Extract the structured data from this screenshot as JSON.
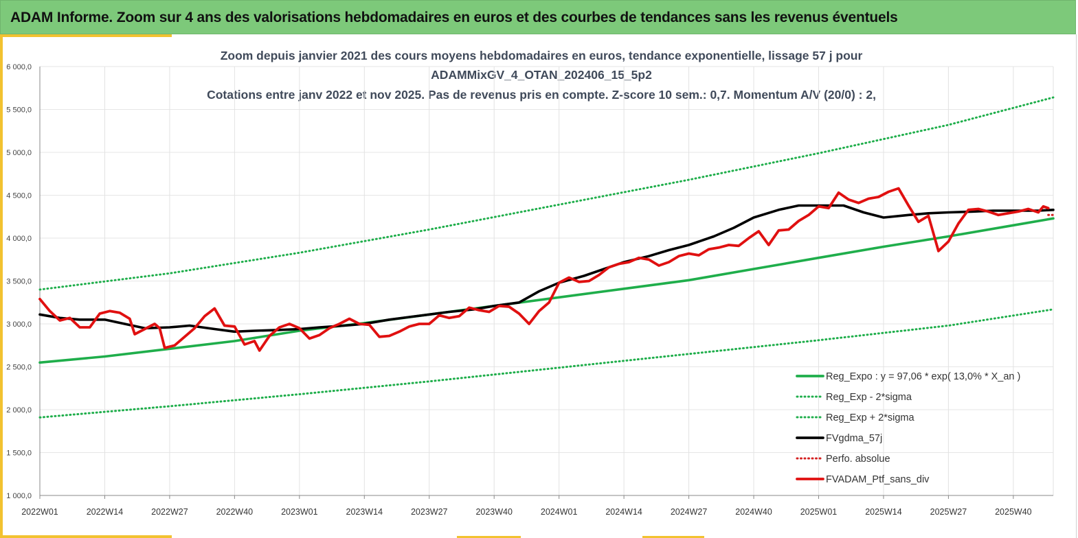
{
  "header": {
    "title": "ADAM Informe. Zoom sur 4 ans des valorisations hebdomadaires en euros et des courbes de tendances sans les revenus éventuels"
  },
  "colors": {
    "header_bg": "#7dc97a",
    "accent": "#f2c230",
    "trend": "#1fae4b",
    "trend_band": "#1fae4b",
    "gdma": "#000000",
    "perfo": "#d42020",
    "portfolio": "#e01010"
  },
  "chart_data": {
    "type": "line",
    "title_lines": [
      "Zoom depuis janvier 2021 des cours moyens hebdomadaires  en euros, tendance exponentielle, lissage 57 j pour",
      "ADAMMixGV_4_OTAN_202406_15_5p2",
      "Cotations entre janv 2022 et nov 2025. Pas de revenus pris en compte. Z-score 10 sem.: 0,7. Momentum A/V (20/0) : 2,"
    ],
    "ylim": [
      1000,
      6000
    ],
    "yticks": [
      "1 000,0",
      "1 500,0",
      "2 000,0",
      "2 500,0",
      "3 000,0",
      "3 500,0",
      "4 000,0",
      "4 500,0",
      "5 000,0",
      "5 500,0",
      "6 000,0"
    ],
    "x_categories": [
      "2022W01",
      "2022W14",
      "2022W27",
      "2022W40",
      "2023W01",
      "2023W14",
      "2023W27",
      "2023W40",
      "2024W01",
      "2024W14",
      "2024W27",
      "2024W40",
      "2025W01",
      "2025W14",
      "2025W27",
      "2025W40"
    ],
    "grid": "vertical",
    "legend_position": "bottom-right",
    "series": [
      {
        "name": "Reg_Expo : y = 97,06 * exp( 13,0% *  X_an )",
        "style": "solid-thick",
        "color": "#1fae4b",
        "points": [
          [
            0,
            2550
          ],
          [
            13,
            2620
          ],
          [
            26,
            2710
          ],
          [
            39,
            2800
          ],
          [
            52,
            2920
          ],
          [
            65,
            3010
          ],
          [
            78,
            3110
          ],
          [
            91,
            3210
          ],
          [
            104,
            3310
          ],
          [
            117,
            3410
          ],
          [
            130,
            3510
          ],
          [
            143,
            3640
          ],
          [
            156,
            3770
          ],
          [
            169,
            3900
          ],
          [
            182,
            4020
          ],
          [
            195,
            4150
          ],
          [
            203,
            4230
          ]
        ]
      },
      {
        "name": "Reg_Exp - 2*sigma",
        "style": "dotted",
        "color": "#1fae4b",
        "points": [
          [
            0,
            1910
          ],
          [
            26,
            2040
          ],
          [
            52,
            2180
          ],
          [
            78,
            2330
          ],
          [
            104,
            2490
          ],
          [
            130,
            2650
          ],
          [
            156,
            2810
          ],
          [
            182,
            2980
          ],
          [
            203,
            3170
          ]
        ]
      },
      {
        "name": "Reg_Exp + 2*sigma",
        "style": "dotted",
        "color": "#1fae4b",
        "points": [
          [
            0,
            3400
          ],
          [
            26,
            3590
          ],
          [
            52,
            3830
          ],
          [
            78,
            4100
          ],
          [
            104,
            4390
          ],
          [
            130,
            4680
          ],
          [
            156,
            4990
          ],
          [
            182,
            5320
          ],
          [
            203,
            5640
          ]
        ]
      },
      {
        "name": "FVgdma_57j",
        "style": "solid-thick",
        "color": "#000000",
        "points": [
          [
            0,
            3110
          ],
          [
            4,
            3070
          ],
          [
            8,
            3050
          ],
          [
            13,
            3050
          ],
          [
            17,
            3000
          ],
          [
            21,
            2950
          ],
          [
            26,
            2960
          ],
          [
            30,
            2980
          ],
          [
            35,
            2940
          ],
          [
            39,
            2910
          ],
          [
            43,
            2920
          ],
          [
            48,
            2930
          ],
          [
            52,
            2940
          ],
          [
            56,
            2960
          ],
          [
            61,
            2980
          ],
          [
            65,
            3000
          ],
          [
            70,
            3050
          ],
          [
            74,
            3080
          ],
          [
            78,
            3110
          ],
          [
            82,
            3140
          ],
          [
            87,
            3170
          ],
          [
            91,
            3210
          ],
          [
            96,
            3250
          ],
          [
            100,
            3380
          ],
          [
            104,
            3480
          ],
          [
            109,
            3560
          ],
          [
            113,
            3640
          ],
          [
            117,
            3720
          ],
          [
            122,
            3790
          ],
          [
            126,
            3860
          ],
          [
            130,
            3920
          ],
          [
            135,
            4020
          ],
          [
            139,
            4120
          ],
          [
            143,
            4240
          ],
          [
            148,
            4330
          ],
          [
            152,
            4380
          ],
          [
            156,
            4380
          ],
          [
            161,
            4380
          ],
          [
            165,
            4300
          ],
          [
            169,
            4240
          ],
          [
            174,
            4270
          ],
          [
            178,
            4290
          ],
          [
            182,
            4300
          ],
          [
            187,
            4310
          ],
          [
            191,
            4320
          ],
          [
            195,
            4320
          ],
          [
            200,
            4320
          ],
          [
            203,
            4330
          ]
        ]
      },
      {
        "name": "Perfo. absolue",
        "style": "dotted",
        "color": "#d42020",
        "points": [
          [
            202,
            4270
          ],
          [
            203,
            4270
          ]
        ]
      },
      {
        "name": "FVADAM_Ptf_sans_div",
        "style": "solid-thick",
        "color": "#e01010",
        "points": [
          [
            0,
            3290
          ],
          [
            2,
            3150
          ],
          [
            4,
            3040
          ],
          [
            6,
            3070
          ],
          [
            8,
            2960
          ],
          [
            10,
            2960
          ],
          [
            12,
            3120
          ],
          [
            14,
            3150
          ],
          [
            16,
            3130
          ],
          [
            18,
            3060
          ],
          [
            19,
            2880
          ],
          [
            21,
            2940
          ],
          [
            23,
            3000
          ],
          [
            24,
            2950
          ],
          [
            25,
            2720
          ],
          [
            27,
            2750
          ],
          [
            29,
            2850
          ],
          [
            31,
            2950
          ],
          [
            33,
            3090
          ],
          [
            35,
            3180
          ],
          [
            37,
            2980
          ],
          [
            39,
            2970
          ],
          [
            41,
            2760
          ],
          [
            43,
            2800
          ],
          [
            44,
            2690
          ],
          [
            46,
            2860
          ],
          [
            48,
            2960
          ],
          [
            50,
            3000
          ],
          [
            52,
            2950
          ],
          [
            54,
            2830
          ],
          [
            56,
            2870
          ],
          [
            58,
            2950
          ],
          [
            60,
            3000
          ],
          [
            62,
            3060
          ],
          [
            64,
            3000
          ],
          [
            66,
            2990
          ],
          [
            68,
            2850
          ],
          [
            70,
            2860
          ],
          [
            72,
            2910
          ],
          [
            74,
            2970
          ],
          [
            76,
            3000
          ],
          [
            78,
            3000
          ],
          [
            80,
            3100
          ],
          [
            82,
            3070
          ],
          [
            84,
            3090
          ],
          [
            86,
            3190
          ],
          [
            88,
            3160
          ],
          [
            90,
            3140
          ],
          [
            92,
            3210
          ],
          [
            94,
            3200
          ],
          [
            96,
            3120
          ],
          [
            98,
            3000
          ],
          [
            100,
            3150
          ],
          [
            102,
            3250
          ],
          [
            104,
            3480
          ],
          [
            106,
            3540
          ],
          [
            108,
            3490
          ],
          [
            110,
            3500
          ],
          [
            112,
            3570
          ],
          [
            114,
            3660
          ],
          [
            116,
            3700
          ],
          [
            118,
            3720
          ],
          [
            120,
            3770
          ],
          [
            122,
            3750
          ],
          [
            124,
            3680
          ],
          [
            126,
            3720
          ],
          [
            128,
            3790
          ],
          [
            130,
            3820
          ],
          [
            132,
            3800
          ],
          [
            134,
            3870
          ],
          [
            136,
            3890
          ],
          [
            138,
            3920
          ],
          [
            140,
            3910
          ],
          [
            142,
            4000
          ],
          [
            144,
            4080
          ],
          [
            146,
            3920
          ],
          [
            148,
            4090
          ],
          [
            150,
            4100
          ],
          [
            152,
            4200
          ],
          [
            154,
            4270
          ],
          [
            156,
            4370
          ],
          [
            158,
            4350
          ],
          [
            160,
            4530
          ],
          [
            162,
            4450
          ],
          [
            164,
            4410
          ],
          [
            166,
            4460
          ],
          [
            168,
            4480
          ],
          [
            170,
            4540
          ],
          [
            172,
            4580
          ],
          [
            174,
            4380
          ],
          [
            176,
            4190
          ],
          [
            178,
            4260
          ],
          [
            180,
            3850
          ],
          [
            182,
            3960
          ],
          [
            184,
            4170
          ],
          [
            186,
            4330
          ],
          [
            188,
            4340
          ],
          [
            190,
            4310
          ],
          [
            192,
            4270
          ],
          [
            194,
            4290
          ],
          [
            196,
            4310
          ],
          [
            198,
            4340
          ],
          [
            200,
            4300
          ],
          [
            201,
            4370
          ],
          [
            202,
            4350
          ]
        ]
      }
    ]
  }
}
